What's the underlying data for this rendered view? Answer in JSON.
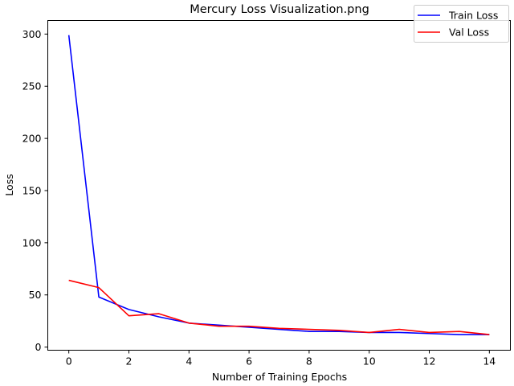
{
  "chart_data": {
    "type": "line",
    "title": "Mercury Loss Visualization.png",
    "xlabel": "Number of Training Epochs",
    "ylabel": "Loss",
    "x": [
      0,
      1,
      2,
      3,
      4,
      5,
      6,
      7,
      8,
      9,
      10,
      11,
      12,
      13,
      14
    ],
    "xlim": [
      -0.7,
      14.7
    ],
    "ylim": [
      -3,
      313
    ],
    "xticks": [
      0,
      2,
      4,
      6,
      8,
      10,
      12,
      14
    ],
    "yticks": [
      0,
      50,
      100,
      150,
      200,
      250,
      300
    ],
    "grid": false,
    "legend_position": "top-right",
    "series": [
      {
        "name": "Train Loss",
        "color": "#0000ff",
        "values": [
          299,
          48,
          36,
          29,
          23,
          21,
          19,
          17,
          15,
          15,
          14,
          14,
          13,
          12,
          12
        ]
      },
      {
        "name": "Val Loss",
        "color": "#ff0000",
        "values": [
          64,
          57,
          30,
          32,
          23,
          20,
          20,
          18,
          17,
          16,
          14,
          17,
          14,
          15,
          12
        ]
      }
    ]
  }
}
